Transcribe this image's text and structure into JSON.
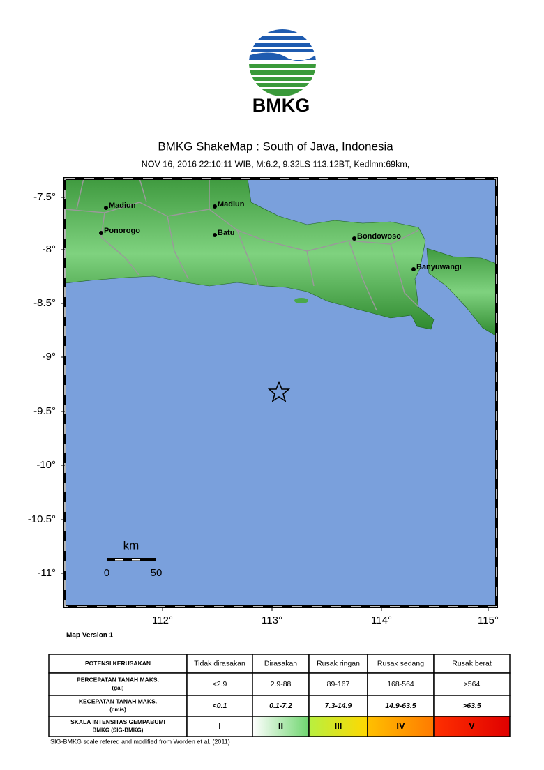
{
  "header": {
    "logo_text": "BMKG",
    "title": "BMKG ShakeMap : South of Java, Indonesia",
    "subtitle": "NOV 16, 2016 22:10:11 WIB, M:6.2, 9.32LS 113.12BT, Kedlmn:69km,"
  },
  "map": {
    "lat_labels": [
      "-7.5°",
      "-8°",
      "-8.5°",
      "-9°",
      "-9.5°",
      "-10°",
      "-10.5°",
      "-11°"
    ],
    "lon_labels": [
      "112°",
      "113°",
      "114°",
      "115°"
    ],
    "cities": [
      "Madiun",
      "Madiun",
      "Ponorogo",
      "Batu",
      "Bondowoso",
      "Banyuwangi"
    ],
    "scale": {
      "unit": "km",
      "labels": [
        "0",
        "50"
      ]
    },
    "version": "Map Version 1"
  },
  "legend_table": {
    "rows": [
      [
        [
          "POTENSI KERUSAKAN"
        ],
        "Tidak dirasakan",
        "Dirasakan",
        "Rusak ringan",
        "Rusak sedang",
        "Rusak berat"
      ],
      [
        [
          "PERCEPATAN TANAH MAKS.",
          "(gal)"
        ],
        "<2.9",
        "2.9-88",
        "89-167",
        "168-564",
        ">564"
      ],
      [
        [
          "KECEPATAN TANAH MAKS.",
          "(cm/s)"
        ],
        "<0.1",
        "0.1-7.2",
        "7.3-14.9",
        "14.9-63.5",
        ">63.5"
      ],
      [
        [
          "SKALA INTENSITAS GEMPABUMI",
          "BMKG (SIG-BMKG)"
        ],
        "I",
        "II",
        "III",
        "IV",
        "V"
      ]
    ],
    "footnote": "SIG-BMKG scale refered and modified from Worden et al. (2011)"
  }
}
